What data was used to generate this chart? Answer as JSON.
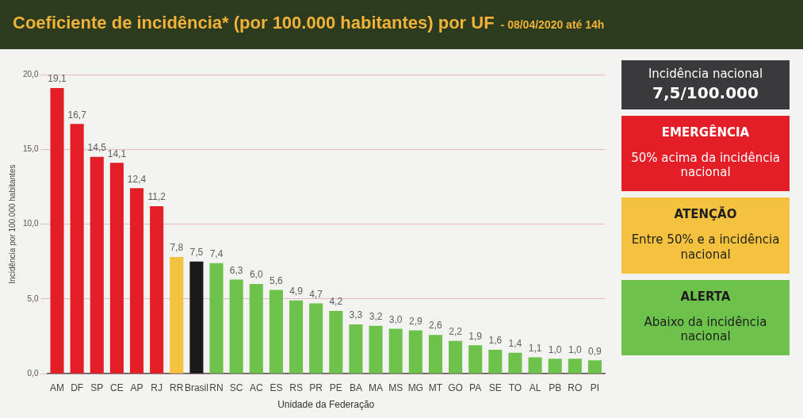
{
  "chart_data": {
    "type": "bar",
    "title": "Coeficiente de incidência* (por 100.000 habitantes) por UF",
    "subtitle": "- 08/04/2020 até 14h",
    "xlabel": "Unidade da Federação",
    "ylabel": "Incidência por 100.000 habitantes",
    "categories": [
      "AM",
      "DF",
      "SP",
      "CE",
      "AP",
      "RJ",
      "RR",
      "Brasil",
      "RN",
      "SC",
      "AC",
      "ES",
      "RS",
      "PR",
      "PE",
      "BA",
      "MA",
      "MS",
      "MG",
      "MT",
      "GO",
      "PA",
      "SE",
      "TO",
      "AL",
      "PB",
      "RO",
      "PI"
    ],
    "series": [
      {
        "name": "EMERGÊNCIA",
        "color": "#e31e26",
        "values": [
          19.1,
          16.7,
          14.5,
          14.1,
          12.4,
          11.2,
          null,
          null,
          null,
          null,
          null,
          null,
          null,
          null,
          null,
          null,
          null,
          null,
          null,
          null,
          null,
          null,
          null,
          null,
          null,
          null,
          null,
          null
        ],
        "value_labels": [
          "19,1",
          "16,7",
          "14,5",
          "14,1",
          "12,4",
          "11,2",
          null,
          null,
          null,
          null,
          null,
          null,
          null,
          null,
          null,
          null,
          null,
          null,
          null,
          null,
          null,
          null,
          null,
          null,
          null,
          null,
          null,
          null
        ]
      },
      {
        "name": "ATENÇÃO",
        "color": "#f4c23e",
        "values": [
          null,
          null,
          null,
          null,
          null,
          null,
          7.8,
          null,
          null,
          null,
          null,
          null,
          null,
          null,
          null,
          null,
          null,
          null,
          null,
          null,
          null,
          null,
          null,
          null,
          null,
          null,
          null,
          null
        ],
        "value_labels": [
          null,
          null,
          null,
          null,
          null,
          null,
          "7,8",
          null,
          null,
          null,
          null,
          null,
          null,
          null,
          null,
          null,
          null,
          null,
          null,
          null,
          null,
          null,
          null,
          null,
          null,
          null,
          null,
          null
        ]
      },
      {
        "color": "#1a1a1a",
        "values": [
          null,
          null,
          null,
          null,
          null,
          null,
          null,
          7.5,
          null,
          null,
          null,
          null,
          null,
          null,
          null,
          null,
          null,
          null,
          null,
          null,
          null,
          null,
          null,
          null,
          null,
          null,
          null,
          null
        ],
        "value_labels": [
          null,
          null,
          null,
          null,
          null,
          null,
          null,
          "7,5",
          null,
          null,
          null,
          null,
          null,
          null,
          null,
          null,
          null,
          null,
          null,
          null,
          null,
          null,
          null,
          null,
          null,
          null,
          null,
          null
        ]
      },
      {
        "name": "ALERTA",
        "color": "#6cc24a",
        "values": [
          null,
          null,
          null,
          null,
          null,
          null,
          null,
          null,
          7.4,
          6.3,
          6.0,
          5.6,
          4.9,
          4.7,
          4.2,
          3.3,
          3.2,
          3.0,
          2.9,
          2.6,
          2.2,
          1.9,
          1.6,
          1.4,
          1.1,
          1.0,
          1.0,
          0.9
        ],
        "value_labels": [
          null,
          null,
          null,
          null,
          null,
          null,
          null,
          null,
          "7,4",
          "6,3",
          "6,0",
          "5,6",
          "4,9",
          "4,7",
          "4,2",
          "3,3",
          "3,2",
          "3,0",
          "2,9",
          "2,6",
          "2,2",
          "1,9",
          "1,6",
          "1,4",
          "1,1",
          "1,0",
          "1,0",
          "0,9"
        ]
      }
    ],
    "ylim": [
      0,
      20
    ],
    "yticks": [
      {
        "value": 0,
        "label": "0,0"
      },
      {
        "value": 5,
        "label": "5,0"
      },
      {
        "value": 10,
        "label": "10,0"
      },
      {
        "value": 15,
        "label": "15,0"
      },
      {
        "value": 20,
        "label": "20,0"
      }
    ],
    "grid": "y",
    "legend": "right",
    "annotations": [
      "Incidência nacional",
      "7,5/100.000",
      "50% acima da incidência nacional",
      "Entre 50% e a incidência nacional",
      "Abaixo da incidência nacional"
    ]
  }
}
